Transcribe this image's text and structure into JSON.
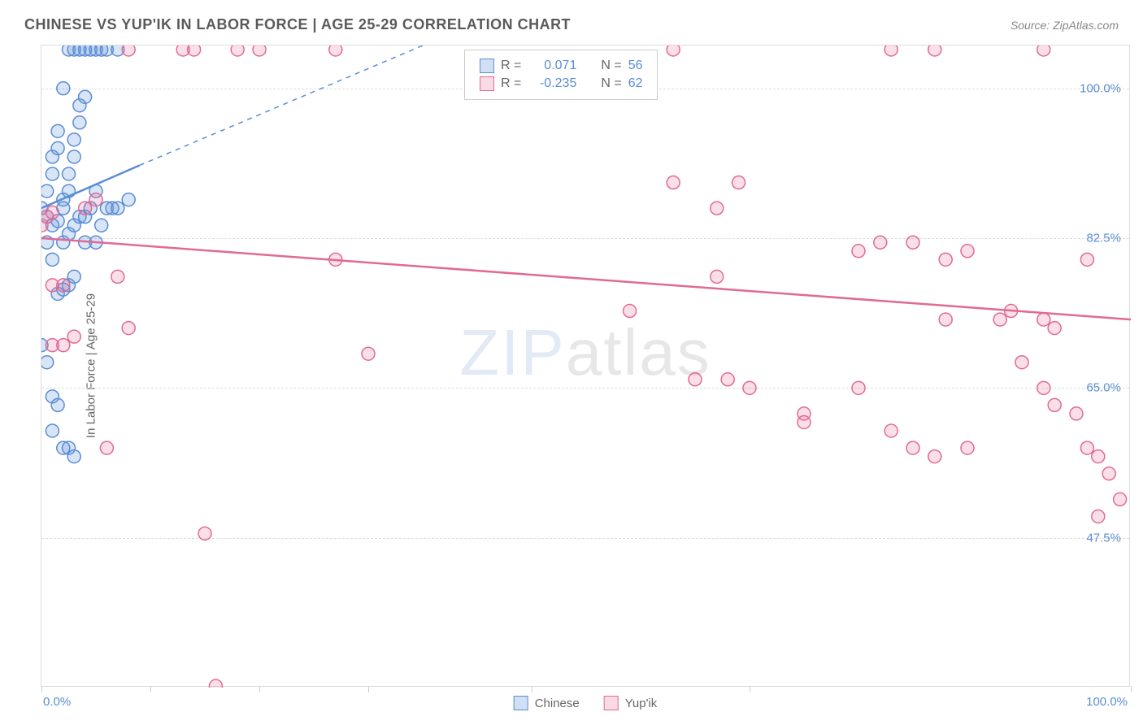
{
  "header": {
    "title": "CHINESE VS YUP'IK IN LABOR FORCE | AGE 25-29 CORRELATION CHART",
    "source_label": "Source: ZipAtlas.com"
  },
  "chart": {
    "type": "scatter",
    "y_axis_label": "In Labor Force | Age 25-29",
    "background_color": "#ffffff",
    "grid_color": "#dddddd",
    "grid_style": "dashed",
    "xlim": [
      0,
      100
    ],
    "ylim": [
      30,
      105
    ],
    "x_ticks": [
      0,
      10,
      20,
      30,
      45,
      65,
      100
    ],
    "x_tick_labels": {
      "0": "0.0%",
      "100": "100.0%"
    },
    "y_ticks": [
      47.5,
      65.0,
      82.5,
      100.0
    ],
    "y_tick_labels": [
      "47.5%",
      "65.0%",
      "82.5%",
      "100.0%"
    ],
    "marker_radius": 8,
    "marker_stroke_width": 1.5,
    "marker_fill_opacity": 0.25,
    "trend_line_width": 2.5,
    "watermark_text_1": "ZIP",
    "watermark_text_2": "atlas",
    "series": [
      {
        "name": "Chinese",
        "color": "#5a8dd4",
        "fill": "rgba(100,150,220,0.25)",
        "R": "0.071",
        "N": "56",
        "trend": {
          "x1": 0,
          "y1": 86,
          "x2": 9,
          "y2": 91,
          "dashed_ext": {
            "x1": 9,
            "y1": 91,
            "x2": 35,
            "y2": 105
          }
        },
        "points": [
          [
            0,
            86
          ],
          [
            0.5,
            88
          ],
          [
            1,
            90
          ],
          [
            1,
            92
          ],
          [
            1.5,
            93
          ],
          [
            1.5,
            95
          ],
          [
            2,
            100
          ],
          [
            2.5,
            105
          ],
          [
            3,
            105
          ],
          [
            3.5,
            105
          ],
          [
            4,
            105
          ],
          [
            4.5,
            105
          ],
          [
            5,
            105
          ],
          [
            5.5,
            105
          ],
          [
            6,
            105
          ],
          [
            7,
            105
          ],
          [
            0.5,
            85
          ],
          [
            1,
            84
          ],
          [
            1.5,
            84.5
          ],
          [
            2,
            86
          ],
          [
            2,
            87
          ],
          [
            2.5,
            88
          ],
          [
            2.5,
            90
          ],
          [
            3,
            92
          ],
          [
            3,
            94
          ],
          [
            3.5,
            96
          ],
          [
            3.5,
            98
          ],
          [
            4,
            99
          ],
          [
            0,
            70
          ],
          [
            0.5,
            68
          ],
          [
            1,
            64
          ],
          [
            1.5,
            63
          ],
          [
            1,
            60
          ],
          [
            2,
            58
          ],
          [
            2.5,
            58
          ],
          [
            3,
            57
          ],
          [
            1.5,
            76
          ],
          [
            2,
            76.5
          ],
          [
            2.5,
            77
          ],
          [
            3,
            78
          ],
          [
            1,
            80
          ],
          [
            0.5,
            82
          ],
          [
            4,
            82
          ],
          [
            5,
            82
          ],
          [
            5.5,
            84
          ],
          [
            6,
            86
          ],
          [
            6.5,
            86
          ],
          [
            7,
            86
          ],
          [
            8,
            87
          ],
          [
            3,
            84
          ],
          [
            3.5,
            85
          ],
          [
            4,
            85
          ],
          [
            4.5,
            86
          ],
          [
            5,
            88
          ],
          [
            2,
            82
          ],
          [
            2.5,
            83
          ]
        ]
      },
      {
        "name": "Yup'ik",
        "color": "#e06a94",
        "fill": "rgba(235,110,150,0.22)",
        "R": "-0.235",
        "N": "62",
        "trend": {
          "x1": 0,
          "y1": 82.5,
          "x2": 100,
          "y2": 73
        },
        "points": [
          [
            0,
            84
          ],
          [
            0.5,
            85
          ],
          [
            1,
            85.5
          ],
          [
            8,
            105
          ],
          [
            13,
            105
          ],
          [
            14,
            105
          ],
          [
            18,
            105
          ],
          [
            20,
            105
          ],
          [
            27,
            105
          ],
          [
            58,
            105
          ],
          [
            78,
            105
          ],
          [
            82,
            105
          ],
          [
            92,
            105
          ],
          [
            1,
            77
          ],
          [
            2,
            77
          ],
          [
            7,
            78
          ],
          [
            1,
            70
          ],
          [
            2,
            70
          ],
          [
            3,
            71
          ],
          [
            8,
            72
          ],
          [
            27,
            80
          ],
          [
            30,
            69
          ],
          [
            15,
            48
          ],
          [
            6,
            58
          ],
          [
            4,
            86
          ],
          [
            5,
            87
          ],
          [
            64,
            89
          ],
          [
            58,
            89
          ],
          [
            62,
            86
          ],
          [
            75,
            81
          ],
          [
            77,
            82
          ],
          [
            80,
            82
          ],
          [
            83,
            80
          ],
          [
            85,
            81
          ],
          [
            96,
            80
          ],
          [
            54,
            74
          ],
          [
            60,
            66
          ],
          [
            63,
            66
          ],
          [
            65,
            65
          ],
          [
            70,
            62
          ],
          [
            70,
            61
          ],
          [
            75,
            65
          ],
          [
            78,
            60
          ],
          [
            80,
            58
          ],
          [
            82,
            57
          ],
          [
            85,
            58
          ],
          [
            83,
            73
          ],
          [
            88,
            73
          ],
          [
            89,
            74
          ],
          [
            92,
            73
          ],
          [
            93,
            72
          ],
          [
            90,
            68
          ],
          [
            92,
            65
          ],
          [
            93,
            63
          ],
          [
            95,
            62
          ],
          [
            96,
            58
          ],
          [
            97,
            57
          ],
          [
            98,
            55
          ],
          [
            99,
            52
          ],
          [
            97,
            50
          ],
          [
            62,
            78
          ],
          [
            16,
            30
          ]
        ]
      }
    ],
    "legend": {
      "r_label": "R =",
      "n_label": "N ="
    },
    "bottom_legend": [
      "Chinese",
      "Yup'ik"
    ]
  }
}
